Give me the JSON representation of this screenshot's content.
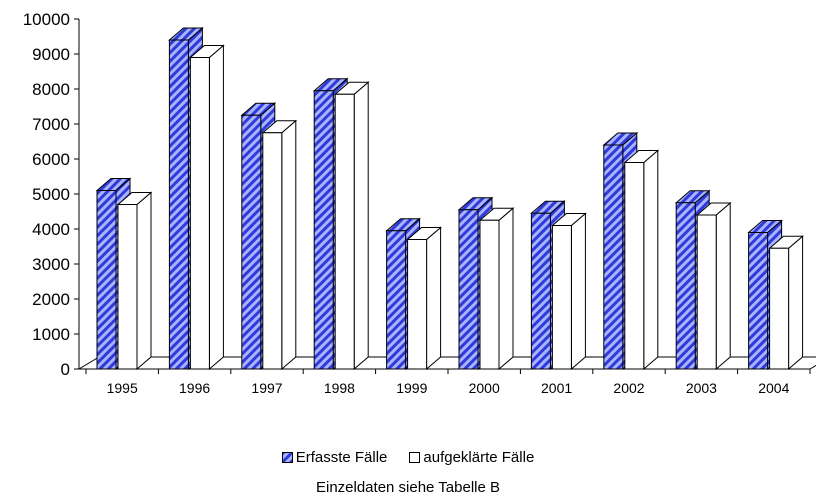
{
  "chart_data": {
    "type": "bar",
    "categories": [
      "1995",
      "1996",
      "1997",
      "1998",
      "1999",
      "2000",
      "2001",
      "2002",
      "2003",
      "2004"
    ],
    "series": [
      {
        "name": "Erfasste Fälle",
        "values": [
          5100,
          9400,
          7250,
          7950,
          3950,
          4550,
          4450,
          6400,
          4750,
          3900
        ]
      },
      {
        "name": "aufgeklärte Fälle",
        "values": [
          4700,
          8900,
          6750,
          7850,
          3700,
          4250,
          4100,
          5900,
          4400,
          3450
        ]
      }
    ],
    "ylim": [
      0,
      10000
    ],
    "yticks": [
      "0",
      "1000",
      "2000",
      "3000",
      "4000",
      "5000",
      "6000",
      "7000",
      "8000",
      "9000",
      "10000"
    ],
    "legend_position": "bottom",
    "grid": false,
    "style": "3d-bar",
    "colors": {
      "series_1": "#2f3bd9",
      "series_1_hatch": "#a9b3ff",
      "series_2": "#ffffff",
      "outline": "#000000"
    }
  },
  "legend": {
    "items": [
      {
        "label": "Erfasste Fälle"
      },
      {
        "label": "aufgeklärte Fälle"
      }
    ]
  },
  "note": "Einzeldaten siehe Tabelle B"
}
